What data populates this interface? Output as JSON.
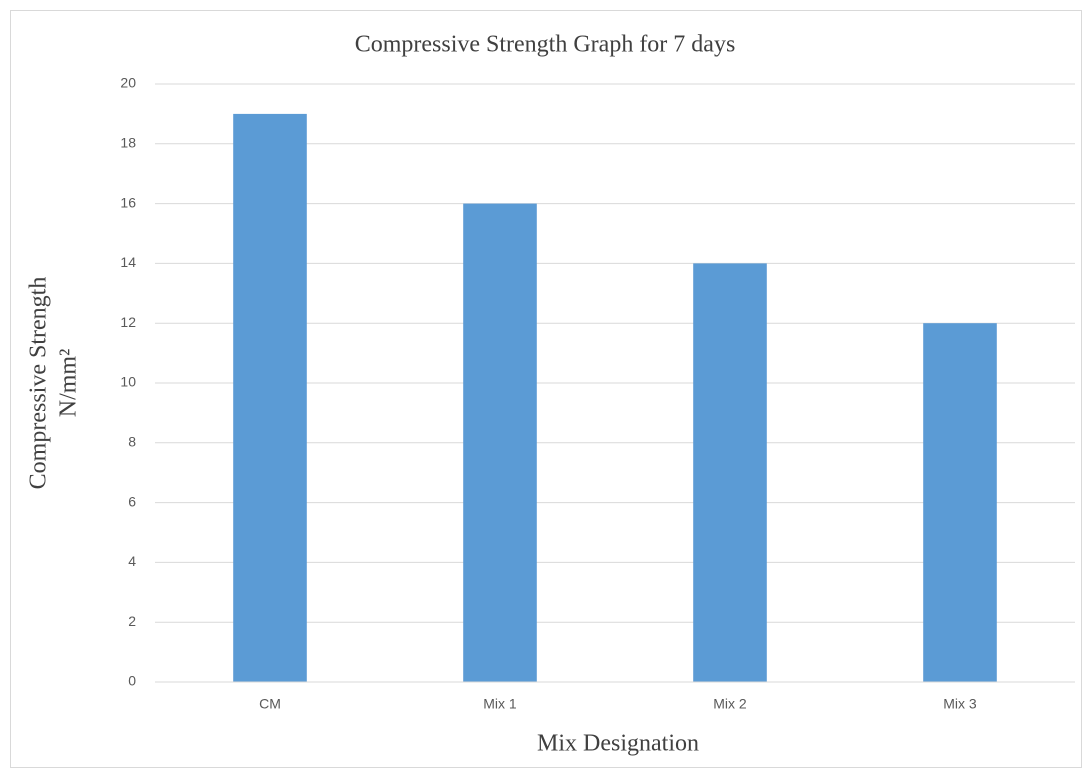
{
  "chart_data": {
    "type": "bar",
    "title": "Compressive Strength Graph for 7 days",
    "x_label": "Mix Designation",
    "y_label": [
      "Compressive Strength",
      "N/mm²"
    ],
    "categories": [
      "CM",
      "Mix 1",
      "Mix 2",
      "Mix 3"
    ],
    "values": [
      19,
      16,
      14,
      12
    ],
    "color": "#5b9bd5",
    "ylim": [
      0,
      20
    ],
    "yticks": [
      0,
      2,
      4,
      6,
      8,
      10,
      12,
      14,
      16,
      18,
      20
    ],
    "grid": true
  }
}
